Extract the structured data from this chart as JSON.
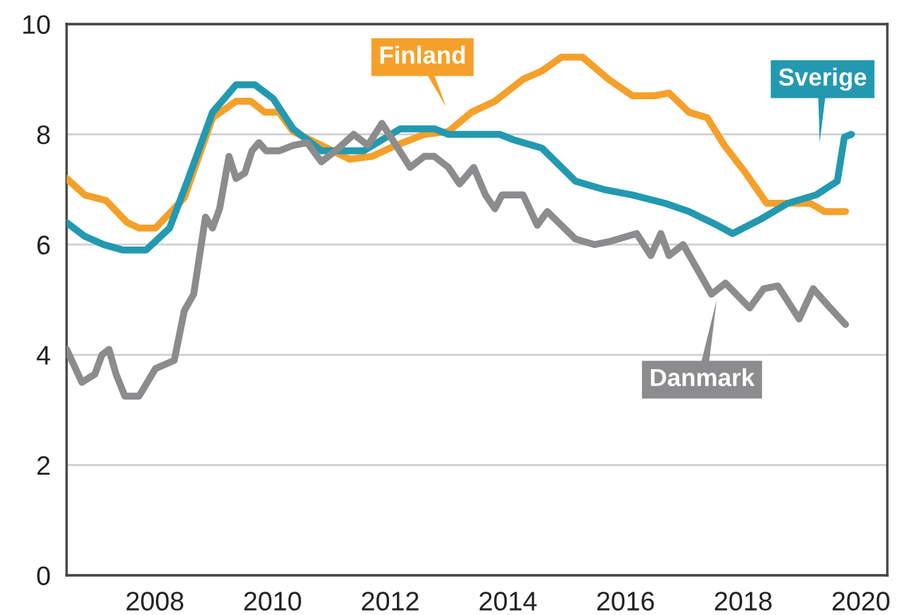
{
  "chart_data": {
    "type": "line",
    "xlim": [
      2006.5,
      2020.45
    ],
    "ylim": [
      0,
      10
    ],
    "xticks": [
      2008,
      2010,
      2012,
      2014,
      2016,
      2018,
      2020
    ],
    "yticks": [
      0,
      2,
      4,
      6,
      8,
      10
    ],
    "grid": "y",
    "legend": false,
    "series": [
      {
        "name": "Finland",
        "color": "#f5a02a",
        "x": [
          2006.5,
          2006.81,
          2007.17,
          2007.53,
          2007.73,
          2008.01,
          2008.5,
          2008.98,
          2009.38,
          2009.63,
          2009.87,
          2010.11,
          2010.35,
          2010.83,
          2011.31,
          2011.69,
          2012.1,
          2012.58,
          2012.99,
          2013.38,
          2013.78,
          2014.26,
          2014.58,
          2014.91,
          2015.27,
          2015.71,
          2016.12,
          2016.5,
          2016.74,
          2017.08,
          2017.39,
          2017.68,
          2018.04,
          2018.4,
          2018.9,
          2019.14,
          2019.38,
          2019.74
        ],
        "values": [
          7.2,
          6.9,
          6.8,
          6.4,
          6.3,
          6.3,
          6.85,
          8.3,
          8.6,
          8.6,
          8.4,
          8.4,
          8.05,
          7.8,
          7.55,
          7.6,
          7.8,
          8.0,
          8.05,
          8.4,
          8.6,
          9.0,
          9.15,
          9.4,
          9.4,
          9.0,
          8.7,
          8.7,
          8.75,
          8.4,
          8.3,
          7.8,
          7.3,
          6.75,
          6.75,
          6.75,
          6.6,
          6.6
        ]
      },
      {
        "name": "Sverige",
        "color": "#2399b0",
        "x": [
          2006.5,
          2006.81,
          2007.13,
          2007.46,
          2007.85,
          2008.25,
          2008.57,
          2008.98,
          2009.38,
          2009.7,
          2010.01,
          2010.35,
          2010.83,
          2011.55,
          2012.17,
          2012.75,
          2012.99,
          2013.3,
          2013.86,
          2014.1,
          2014.58,
          2015.15,
          2015.63,
          2016.12,
          2016.67,
          2017.08,
          2017.56,
          2017.82,
          2018.28,
          2018.76,
          2019.24,
          2019.6,
          2019.72,
          2019.84
        ],
        "values": [
          6.4,
          6.15,
          6.0,
          5.9,
          5.9,
          6.3,
          7.2,
          8.4,
          8.9,
          8.9,
          8.65,
          8.1,
          7.7,
          7.7,
          8.1,
          8.1,
          8.0,
          8.0,
          8.0,
          7.9,
          7.75,
          7.15,
          7.0,
          6.9,
          6.75,
          6.6,
          6.35,
          6.2,
          6.45,
          6.75,
          6.9,
          7.15,
          7.95,
          8.0
        ]
      },
      {
        "name": "Danmark",
        "color": "#8c8c8e",
        "x": [
          2006.5,
          2006.76,
          2006.98,
          2007.1,
          2007.22,
          2007.34,
          2007.49,
          2007.73,
          2008.01,
          2008.33,
          2008.5,
          2008.66,
          2008.86,
          2008.98,
          2009.1,
          2009.26,
          2009.38,
          2009.53,
          2009.65,
          2009.77,
          2009.89,
          2010.11,
          2010.35,
          2010.59,
          2010.83,
          2011.07,
          2011.38,
          2011.62,
          2011.86,
          2012.1,
          2012.34,
          2012.58,
          2012.75,
          2012.99,
          2013.18,
          2013.42,
          2013.62,
          2013.78,
          2013.9,
          2014.26,
          2014.5,
          2014.67,
          2015.15,
          2015.47,
          2015.71,
          2016.19,
          2016.43,
          2016.6,
          2016.74,
          2016.98,
          2017.22,
          2017.46,
          2017.7,
          2018.11,
          2018.35,
          2018.59,
          2018.95,
          2019.19,
          2019.48,
          2019.74
        ],
        "values": [
          4.1,
          3.5,
          3.65,
          4.0,
          4.1,
          3.65,
          3.25,
          3.25,
          3.75,
          3.9,
          4.8,
          5.1,
          6.5,
          6.3,
          6.65,
          7.6,
          7.2,
          7.3,
          7.7,
          7.85,
          7.7,
          7.7,
          7.8,
          7.85,
          7.5,
          7.7,
          8.0,
          7.8,
          8.2,
          7.8,
          7.4,
          7.6,
          7.6,
          7.4,
          7.1,
          7.4,
          6.9,
          6.65,
          6.9,
          6.9,
          6.35,
          6.6,
          6.1,
          6.0,
          6.05,
          6.2,
          5.8,
          6.2,
          5.8,
          6.0,
          5.55,
          5.1,
          5.3,
          4.85,
          5.2,
          5.25,
          4.65,
          5.2,
          4.85,
          4.55
        ]
      }
    ]
  }
}
